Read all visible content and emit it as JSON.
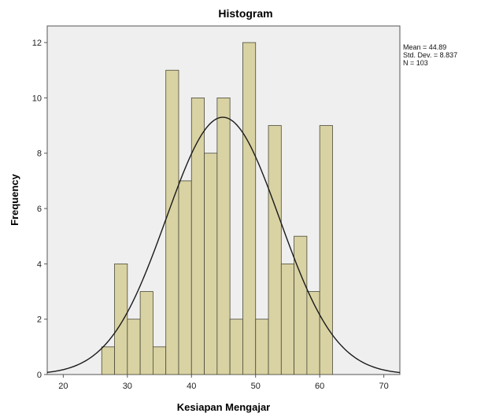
{
  "chart_data": {
    "type": "bar",
    "title": "Histogram",
    "xlabel": "Kesiapan Mengajar",
    "ylabel": "Frequency",
    "xlim": [
      17.5,
      72.5
    ],
    "ylim": [
      0,
      12.6
    ],
    "x_ticks": [
      20,
      30,
      40,
      50,
      60,
      70
    ],
    "y_ticks": [
      0,
      2,
      4,
      6,
      8,
      10,
      12
    ],
    "bin_width": 2,
    "bins": [
      {
        "x0": 26,
        "x1": 28,
        "value": 1
      },
      {
        "x0": 28,
        "x1": 30,
        "value": 4
      },
      {
        "x0": 30,
        "x1": 32,
        "value": 2
      },
      {
        "x0": 32,
        "x1": 34,
        "value": 3
      },
      {
        "x0": 34,
        "x1": 36,
        "value": 1
      },
      {
        "x0": 36,
        "x1": 38,
        "value": 11
      },
      {
        "x0": 38,
        "x1": 40,
        "value": 7
      },
      {
        "x0": 40,
        "x1": 42,
        "value": 10
      },
      {
        "x0": 42,
        "x1": 44,
        "value": 8
      },
      {
        "x0": 44,
        "x1": 46,
        "value": 10
      },
      {
        "x0": 46,
        "x1": 48,
        "value": 2
      },
      {
        "x0": 48,
        "x1": 50,
        "value": 12
      },
      {
        "x0": 50,
        "x1": 52,
        "value": 2
      },
      {
        "x0": 52,
        "x1": 54,
        "value": 9
      },
      {
        "x0": 54,
        "x1": 56,
        "value": 4
      },
      {
        "x0": 56,
        "x1": 58,
        "value": 5
      },
      {
        "x0": 58,
        "x1": 60,
        "value": 3
      },
      {
        "x0": 60,
        "x1": 62,
        "value": 9
      }
    ],
    "normal_curve": {
      "mean": 44.89,
      "std": 8.837,
      "n": 103
    },
    "stats": {
      "mean": "Mean = 44.89",
      "std": "Std. Dev. = 8.837",
      "n": "N = 103"
    },
    "grid": false,
    "colors": {
      "bar_fill": "#d9d2a3",
      "bar_stroke": "#4a4a3a",
      "plot_bg": "#efefef",
      "curve": "#1a1a1a"
    }
  }
}
